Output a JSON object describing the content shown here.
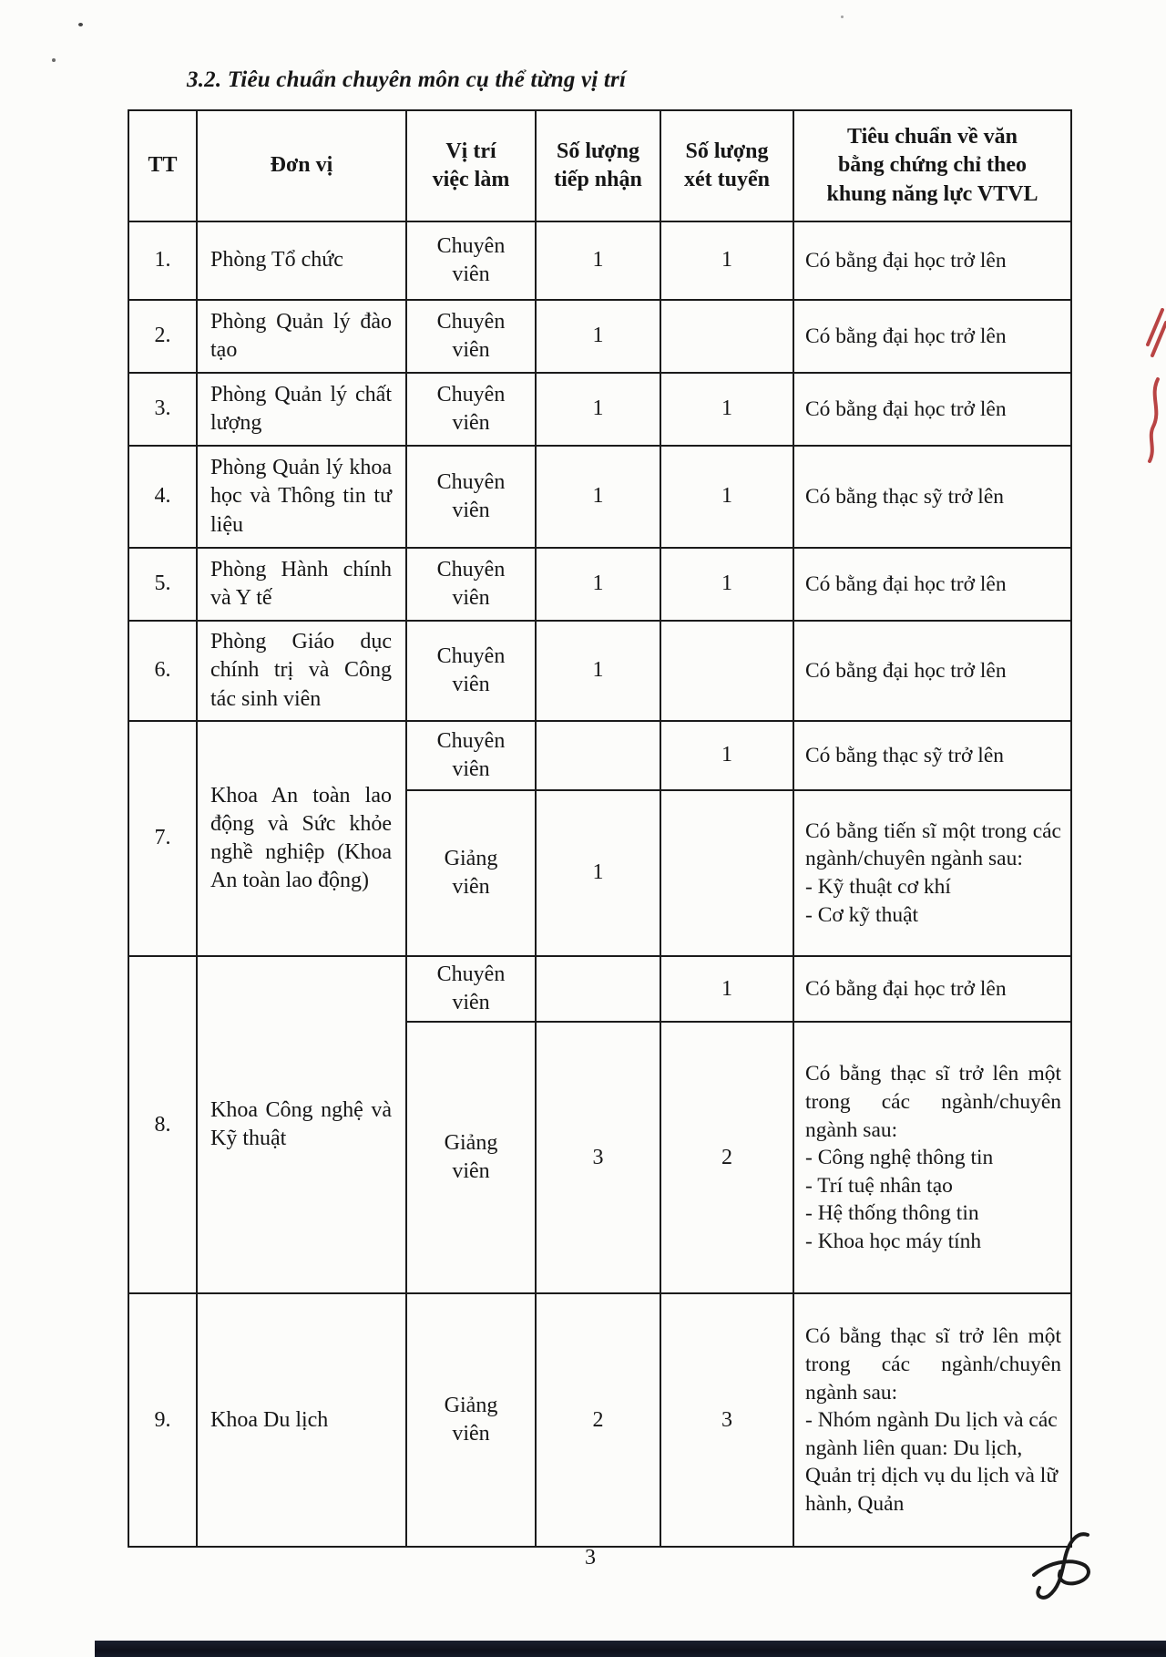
{
  "page": {
    "title": "3.2. Tiêu chuẩn chuyên môn cụ thể từng vị trí",
    "page_number": "3"
  },
  "annotations": {
    "red_pen_marks_color": "#b23131",
    "signature_ink_color": "#1a1a1a"
  },
  "table": {
    "headers": [
      {
        "lines": [
          "TT"
        ]
      },
      {
        "lines": [
          "Đơn vị"
        ]
      },
      {
        "lines": [
          "Vị trí",
          "việc làm"
        ]
      },
      {
        "lines": [
          "Số lượng",
          "tiếp nhận"
        ]
      },
      {
        "lines": [
          "Số lượng",
          "xét tuyển"
        ]
      },
      {
        "lines": [
          "Tiêu chuẩn về văn",
          "bằng chứng chỉ theo",
          "khung năng lực VTVL"
        ]
      }
    ],
    "rows": [
      {
        "tt": "1.",
        "don_vi": "Phòng Tổ chức",
        "positions": [
          {
            "vi_tri": "Chuyên viên",
            "tiep_nhan": "1",
            "xet_tuyen": "1",
            "tieu_chuan": {
              "intro": "Có bằng đại học trở lên",
              "items": []
            }
          }
        ]
      },
      {
        "tt": "2.",
        "don_vi": "Phòng Quản lý đào tạo",
        "positions": [
          {
            "vi_tri": "Chuyên viên",
            "tiep_nhan": "1",
            "xet_tuyen": "",
            "tieu_chuan": {
              "intro": "Có bằng đại học trở lên",
              "items": []
            }
          }
        ]
      },
      {
        "tt": "3.",
        "don_vi": "Phòng Quản lý chất lượng",
        "positions": [
          {
            "vi_tri": "Chuyên viên",
            "tiep_nhan": "1",
            "xet_tuyen": "1",
            "tieu_chuan": {
              "intro": "Có bằng đại học trở lên",
              "items": []
            }
          }
        ]
      },
      {
        "tt": "4.",
        "don_vi": "Phòng Quản lý khoa học và Thông tin tư liệu",
        "positions": [
          {
            "vi_tri": "Chuyên viên",
            "tiep_nhan": "1",
            "xet_tuyen": "1",
            "tieu_chuan": {
              "intro": "Có bằng thạc sỹ trở lên",
              "items": []
            }
          }
        ]
      },
      {
        "tt": "5.",
        "don_vi": "Phòng Hành chính và Y tế",
        "positions": [
          {
            "vi_tri": "Chuyên viên",
            "tiep_nhan": "1",
            "xet_tuyen": "1",
            "tieu_chuan": {
              "intro": "Có bằng đại học trở lên",
              "items": []
            }
          }
        ]
      },
      {
        "tt": "6.",
        "don_vi": "Phòng Giáo dục chính trị và Công tác sinh viên",
        "positions": [
          {
            "vi_tri": "Chuyên viên",
            "tiep_nhan": "1",
            "xet_tuyen": "",
            "tieu_chuan": {
              "intro": "Có bằng đại học trở lên",
              "items": []
            }
          }
        ]
      },
      {
        "tt": "7.",
        "don_vi": "Khoa An toàn lao động và Sức khỏe nghề nghiệp (Khoa An toàn lao động)",
        "positions": [
          {
            "vi_tri": "Chuyên viên",
            "tiep_nhan": "",
            "xet_tuyen": "1",
            "tieu_chuan": {
              "intro": "Có bằng thạc sỹ trở lên",
              "items": []
            }
          },
          {
            "vi_tri": "Giảng viên",
            "tiep_nhan": "1",
            "xet_tuyen": "",
            "tieu_chuan": {
              "intro": "Có bằng tiến sĩ một trong các ngành/chuyên ngành sau:",
              "items": [
                "- Kỹ thuật cơ khí",
                "- Cơ kỹ thuật"
              ]
            }
          }
        ]
      },
      {
        "tt": "8.",
        "don_vi": "Khoa Công nghệ và Kỹ thuật",
        "positions": [
          {
            "vi_tri": "Chuyên viên",
            "tiep_nhan": "",
            "xet_tuyen": "1",
            "tieu_chuan": {
              "intro": "Có bằng đại học trở lên",
              "items": []
            }
          },
          {
            "vi_tri": "Giảng viên",
            "tiep_nhan": "3",
            "xet_tuyen": "2",
            "tieu_chuan": {
              "intro": "Có bằng thạc sĩ trở lên một trong các ngành/chuyên ngành sau:",
              "items": [
                "- Công nghệ thông tin",
                "- Trí tuệ nhân tạo",
                "- Hệ thống thông tin",
                "- Khoa học máy tính"
              ]
            }
          }
        ]
      },
      {
        "tt": "9.",
        "don_vi": "Khoa Du lịch",
        "positions": [
          {
            "vi_tri": "Giảng viên",
            "tiep_nhan": "2",
            "xet_tuyen": "3",
            "tieu_chuan": {
              "intro": "Có bằng thạc sĩ trở lên một trong các ngành/chuyên ngành sau:",
              "items": [
                "- Nhóm ngành Du lịch và các ngành liên quan: Du lịch, Quản trị dịch vụ du lịch và lữ hành, Quản"
              ]
            }
          }
        ]
      }
    ]
  }
}
